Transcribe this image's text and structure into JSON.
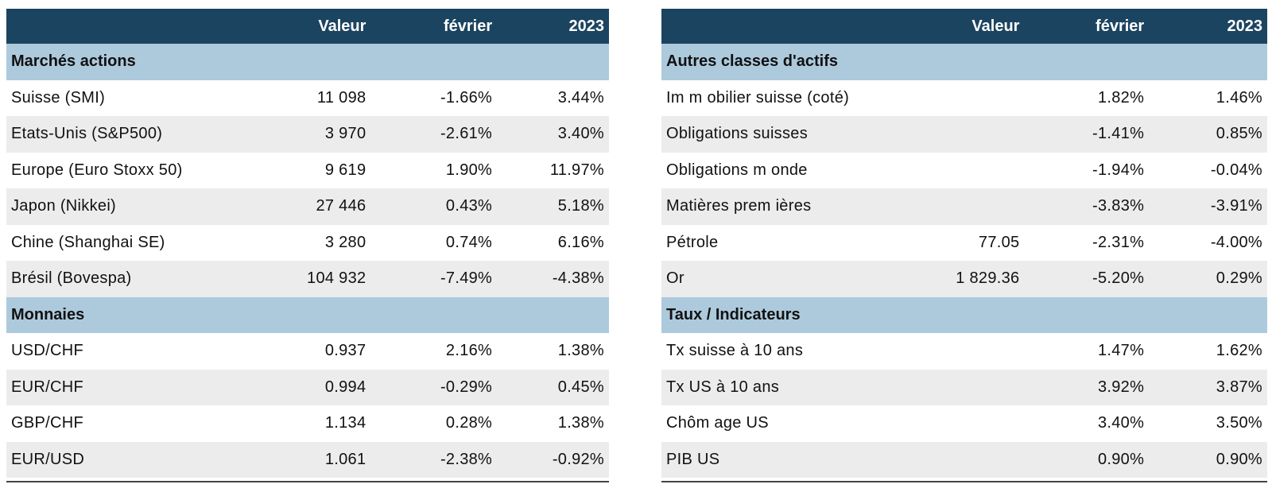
{
  "header": {
    "value": "Valeur",
    "month": "février",
    "year": "2023"
  },
  "left": {
    "sections": [
      {
        "title": "Marchés actions",
        "rows": [
          {
            "name": "Suisse (SMI)",
            "value": "11 098",
            "month": "-1.66%",
            "year": "3.44%"
          },
          {
            "name": "Etats-Unis (S&P500)",
            "value": "3 970",
            "month": "-2.61%",
            "year": "3.40%"
          },
          {
            "name": "Europe (Euro Stoxx 50)",
            "value": "9 619",
            "month": "1.90%",
            "year": "11.97%"
          },
          {
            "name": "Japon (Nikkei)",
            "value": "27 446",
            "month": "0.43%",
            "year": "5.18%"
          },
          {
            "name": "Chine (Shanghai SE)",
            "value": "3 280",
            "month": "0.74%",
            "year": "6.16%"
          },
          {
            "name": "Brésil (Bovespa)",
            "value": "104 932",
            "month": "-7.49%",
            "year": "-4.38%"
          }
        ]
      },
      {
        "title": "Monnaies",
        "rows": [
          {
            "name": "USD/CHF",
            "value": "0.937",
            "month": "2.16%",
            "year": "1.38%"
          },
          {
            "name": "EUR/CHF",
            "value": "0.994",
            "month": "-0.29%",
            "year": "0.45%"
          },
          {
            "name": "GBP/CHF",
            "value": "1.134",
            "month": "0.28%",
            "year": "1.38%"
          },
          {
            "name": "EUR/USD",
            "value": "1.061",
            "month": "-2.38%",
            "year": "-0.92%"
          }
        ]
      }
    ]
  },
  "right": {
    "sections": [
      {
        "title": "Autres classes d'actifs",
        "rows": [
          {
            "name": "Im m obilier suisse (coté)",
            "value": "",
            "month": "1.82%",
            "year": "1.46%"
          },
          {
            "name": "Obligations suisses",
            "value": "",
            "month": "-1.41%",
            "year": "0.85%"
          },
          {
            "name": "Obligations m onde",
            "value": "",
            "month": "-1.94%",
            "year": "-0.04%"
          },
          {
            "name": "Matières prem ières",
            "value": "",
            "month": "-3.83%",
            "year": "-3.91%"
          },
          {
            "name": "Pétrole",
            "value": "77.05",
            "month": "-2.31%",
            "year": "-4.00%"
          },
          {
            "name": "Or",
            "value": "1 829.36",
            "month": "-5.20%",
            "year": "0.29%"
          }
        ]
      },
      {
        "title": "Taux / Indicateurs",
        "rows": [
          {
            "name": "Tx suisse à 10 ans",
            "value": "",
            "month": "1.47%",
            "year": "1.62%"
          },
          {
            "name": "Tx US à 10 ans",
            "value": "",
            "month": "3.92%",
            "year": "3.87%"
          },
          {
            "name": "Chôm age US",
            "value": "",
            "month": "3.40%",
            "year": "3.50%"
          },
          {
            "name": "PIB US",
            "value": "",
            "month": "0.90%",
            "year": "0.90%"
          }
        ]
      }
    ]
  }
}
